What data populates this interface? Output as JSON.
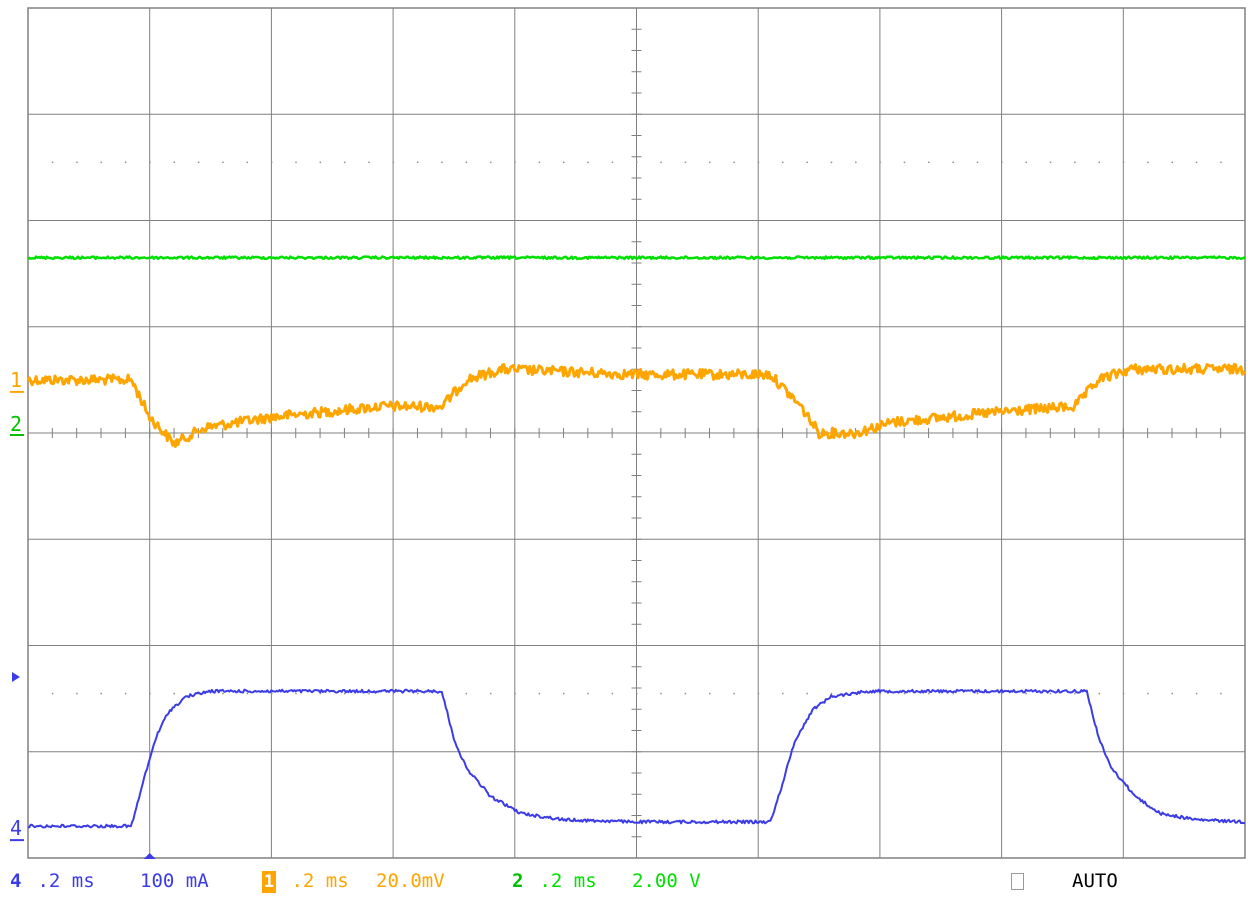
{
  "chart_data": {
    "type": "line",
    "grid": true,
    "divisions": {
      "x": 10,
      "y": 8
    },
    "x_unit": "ms",
    "time_per_div": 0.2,
    "x_range": [
      0,
      2.0
    ],
    "series": [
      {
        "channel": "1",
        "color": "#ffa500",
        "volts_per_div": "20.0mV",
        "y_range_mv": [
          -90,
          70
        ],
        "points": [
          [
            0,
            0
          ],
          [
            0.17,
            0
          ],
          [
            0.2,
            -7
          ],
          [
            0.24,
            -12
          ],
          [
            0.29,
            -9
          ],
          [
            0.4,
            -7
          ],
          [
            0.58,
            -5
          ],
          [
            0.68,
            -5
          ],
          [
            0.72,
            0
          ],
          [
            0.78,
            2
          ],
          [
            1.0,
            1
          ],
          [
            1.22,
            1
          ],
          [
            1.27,
            -5
          ],
          [
            1.3,
            -10
          ],
          [
            1.36,
            -10
          ],
          [
            1.42,
            -8
          ],
          [
            1.6,
            -6
          ],
          [
            1.72,
            -5
          ],
          [
            1.76,
            0
          ],
          [
            1.81,
            2
          ],
          [
            2.0,
            2
          ]
        ]
      },
      {
        "channel": "2",
        "color": "#00e000",
        "volts_per_div": "2.00 V",
        "y_range_v": [
          -8,
          8
        ],
        "points": [
          [
            0,
            3.3
          ],
          [
            2.0,
            3.3
          ]
        ]
      },
      {
        "channel": "4",
        "color": "#3c3ce6",
        "volts_per_div": "100 mA",
        "y_range_ma": [
          -30,
          770
        ],
        "points": [
          [
            0,
            0
          ],
          [
            0.17,
            0
          ],
          [
            0.19,
            43
          ],
          [
            0.21,
            83
          ],
          [
            0.23,
            107
          ],
          [
            0.26,
            122
          ],
          [
            0.3,
            127
          ],
          [
            0.68,
            127
          ],
          [
            0.7,
            82
          ],
          [
            0.72,
            55
          ],
          [
            0.76,
            28
          ],
          [
            0.81,
            12
          ],
          [
            0.88,
            6
          ],
          [
            1.0,
            4
          ],
          [
            1.22,
            4
          ],
          [
            1.24,
            40
          ],
          [
            1.26,
            80
          ],
          [
            1.29,
            110
          ],
          [
            1.32,
            122
          ],
          [
            1.38,
            127
          ],
          [
            1.74,
            127
          ],
          [
            1.76,
            82
          ],
          [
            1.78,
            55
          ],
          [
            1.82,
            28
          ],
          [
            1.86,
            12
          ],
          [
            1.92,
            6
          ],
          [
            2.0,
            4
          ]
        ]
      }
    ],
    "markers": {
      "ch1_label": "1",
      "ch2_label": "2",
      "ch4_label": "4"
    }
  },
  "status": {
    "ch4": {
      "num": "4",
      "timebase": " .2 ms",
      "scale": "100 mA",
      "color": "#3c3ce6"
    },
    "ch1": {
      "num": "1",
      "timebase": " .2 ms",
      "scale": "20.0mV",
      "color": "#ffa500"
    },
    "ch2": {
      "num": "2",
      "timebase": " .2 ms",
      "scale": "2.00 V",
      "color": "#00e000"
    },
    "trigger_mode": "AUTO"
  }
}
